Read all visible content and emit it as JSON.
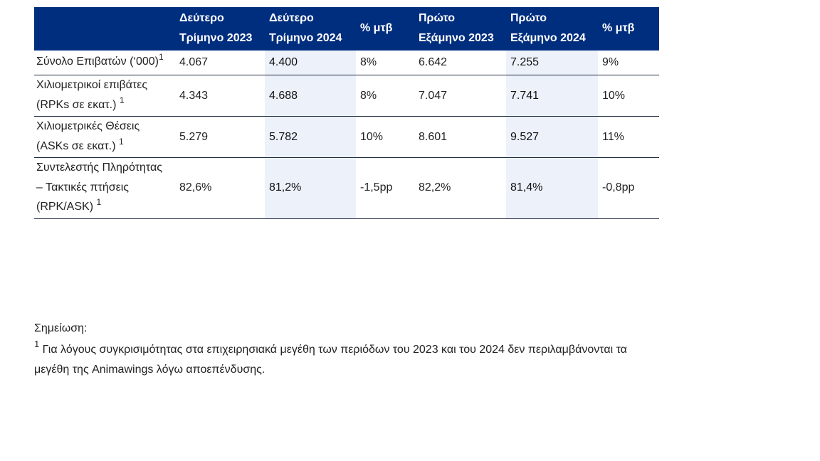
{
  "table": {
    "headers": [
      "",
      "Δεύτερο Τρίμηνο 2023",
      "Δεύτερο Τρίμηνο 2024",
      "% μτβ",
      "Πρώτο Εξάμηνο 2023",
      "Πρώτο Εξάμηνο 2024",
      "% μτβ"
    ],
    "rows": [
      {
        "label": "Σύνολο Επιβατών (‘000)",
        "sup": "1",
        "values": [
          "4.067",
          "4.400",
          "8%",
          "6.642",
          "7.255",
          "9%"
        ]
      },
      {
        "label": "Χιλιομετρικοί επιβάτες (RPKs σε εκατ.) ",
        "sup": "1",
        "values": [
          "4.343",
          "4.688",
          "8%",
          "7.047",
          "7.741",
          "10%"
        ]
      },
      {
        "label": "Χιλιομετρικές Θέσεις (ASKs σε εκατ.) ",
        "sup": "1",
        "values": [
          "5.279",
          "5.782",
          "10%",
          "8.601",
          "9.527",
          "11%"
        ]
      },
      {
        "label": "Συντελεστής Πληρότητας – Τακτικές πτήσεις (RPK/ASK) ",
        "sup": "1",
        "values": [
          "82,6%",
          "81,2%",
          "-1,5pp",
          "82,2%",
          "81,4%",
          "-0,8pp"
        ]
      }
    ]
  },
  "note": {
    "title": "Σημείωση:",
    "sup": "1",
    "text": " Για λόγους συγκρισιμότητας στα επιχειρησιακά μεγέθη των περιόδων του 2023 και του 2024 δεν περιλαμβάνονται τα μεγέθη της Animawings λόγω αποεπένδυσης."
  },
  "colors": {
    "header_bg": "#002e7e",
    "highlight_bg": "#edf1fa",
    "rule": "#1c2a40"
  }
}
